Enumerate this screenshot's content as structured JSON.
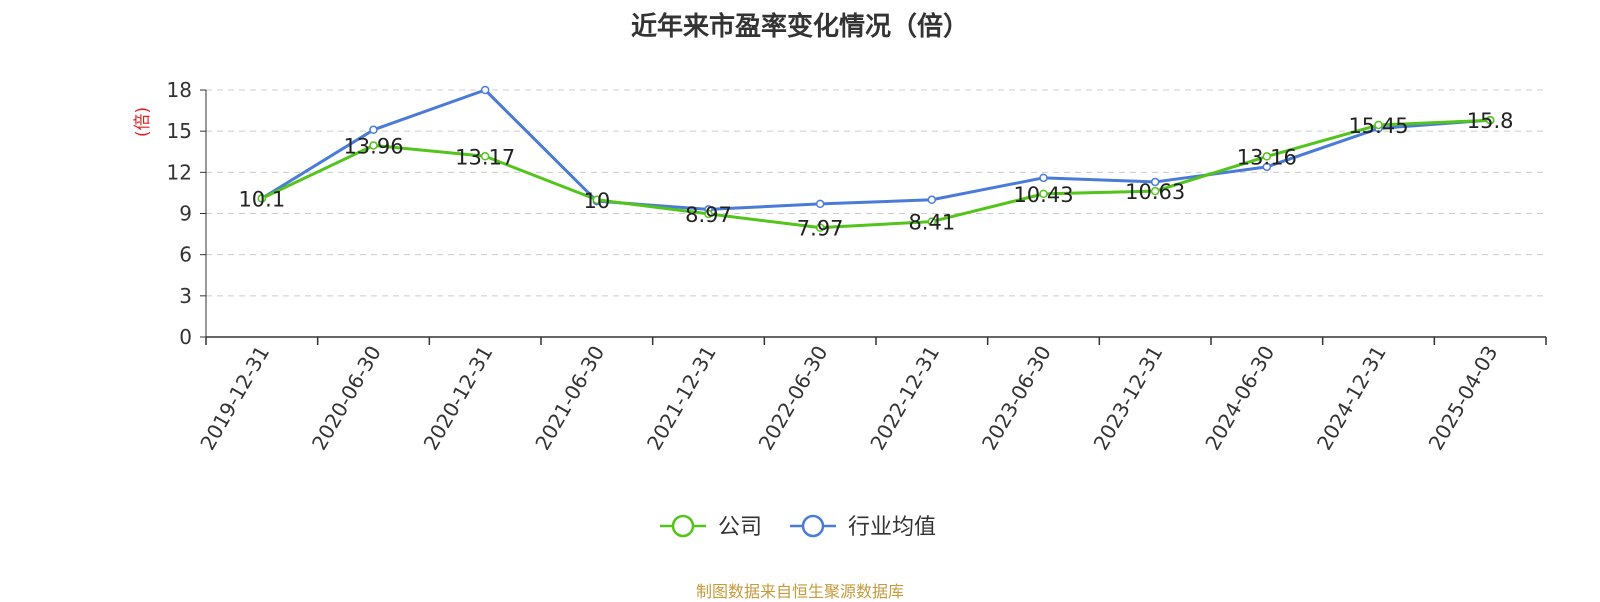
{
  "chart_data": {
    "type": "line",
    "title": "近年来市盈率变化情况（倍）",
    "ylabel": "(倍)",
    "ylim": [
      0,
      18
    ],
    "yticks": [
      0,
      3,
      6,
      9,
      12,
      15,
      18
    ],
    "grid": true,
    "legend_position": "bottom-center",
    "categories": [
      "2019-12-31",
      "2020-06-30",
      "2020-12-31",
      "2021-06-30",
      "2021-12-31",
      "2022-06-30",
      "2022-12-31",
      "2023-06-30",
      "2023-12-31",
      "2024-06-30",
      "2024-12-31",
      "2025-04-03"
    ],
    "series": [
      {
        "name": "公司",
        "color": "#52c41a",
        "values": [
          10.1,
          13.96,
          13.17,
          10,
          8.97,
          7.97,
          8.41,
          10.43,
          10.63,
          13.16,
          15.45,
          15.8
        ],
        "data_labels": [
          "10.1",
          "13.96",
          "13.17",
          "10",
          "8.97",
          "7.97",
          "8.41",
          "10.43",
          "10.63",
          "13.16",
          "15.45",
          "15.8"
        ]
      },
      {
        "name": "行业均值",
        "color": "#4a7bd9",
        "values": [
          10.1,
          15.1,
          18.0,
          9.9,
          9.3,
          9.7,
          10.0,
          11.6,
          11.3,
          12.4,
          15.2,
          15.8
        ]
      }
    ]
  },
  "footer": {
    "source": "制图数据来自恒生聚源数据库"
  }
}
